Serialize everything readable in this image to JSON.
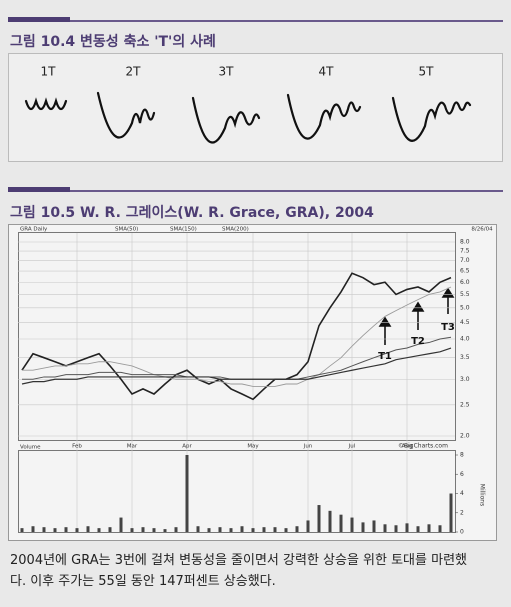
{
  "figure1": {
    "title": "그림 10.4 변동성 축소 'T'의 사례",
    "labels": [
      "1T",
      "2T",
      "3T",
      "4T",
      "5T"
    ]
  },
  "figure2": {
    "title": "그림 10.5 W. R. 그레이스(W. R. Grace, GRA), 2004",
    "chart_data": {
      "type": "line",
      "header": [
        "GRA Daily",
        "SMA(50)",
        "SMA(150)",
        "SMA(200)"
      ],
      "date": "8/26/04",
      "categories": [
        null,
        null,
        null,
        null,
        null,
        "Feb",
        null,
        null,
        null,
        null,
        "Mar",
        null,
        null,
        null,
        null,
        "Apr",
        null,
        null,
        null,
        null,
        null,
        "May",
        null,
        null,
        null,
        null,
        "Jun",
        null,
        null,
        null,
        "Jul",
        null,
        null,
        null,
        null,
        "Aug",
        null,
        null,
        null,
        null
      ],
      "log_scale": true,
      "ylim": [
        2,
        8
      ],
      "yticks": [
        {
          "value": 8,
          "label": "8.0"
        },
        {
          "value": 7.5,
          "label": "7.5"
        },
        {
          "value": 7,
          "label": "7.0"
        },
        {
          "value": 6.5,
          "label": "6.5"
        },
        {
          "value": 6,
          "label": "6.0"
        },
        {
          "value": 5.5,
          "label": "5.5"
        },
        {
          "value": 5,
          "label": "5.0"
        },
        {
          "value": 4.5,
          "label": "4.5"
        },
        {
          "value": 4,
          "label": "4.0"
        },
        {
          "value": 3.5,
          "label": "3.5"
        },
        {
          "value": 3,
          "label": "3.0"
        },
        {
          "value": 2.5,
          "label": "2.5"
        },
        {
          "value": 2,
          "label": "2.0"
        }
      ],
      "series": [
        {
          "name": "GRA Daily",
          "color": "#222222",
          "values": [
            3.2,
            3.6,
            3.5,
            3.4,
            3.3,
            3.4,
            3.5,
            3.6,
            3.3,
            3.0,
            2.7,
            2.8,
            2.7,
            2.9,
            3.1,
            3.2,
            3.0,
            2.9,
            3.0,
            2.8,
            2.7,
            2.6,
            2.8,
            3.0,
            3.0,
            3.1,
            3.4,
            4.4,
            5.0,
            5.6,
            6.4,
            6.2,
            5.9,
            6.0,
            5.5,
            5.7,
            5.8,
            5.6,
            6.0,
            6.2
          ]
        },
        {
          "name": "SMA(50)",
          "color": "#9a9a9a",
          "values": [
            3.2,
            3.2,
            3.25,
            3.3,
            3.3,
            3.35,
            3.35,
            3.4,
            3.4,
            3.35,
            3.3,
            3.2,
            3.1,
            3.05,
            3.0,
            3.0,
            3.0,
            2.95,
            2.95,
            2.9,
            2.9,
            2.85,
            2.85,
            2.85,
            2.9,
            2.9,
            3.0,
            3.1,
            3.3,
            3.5,
            3.8,
            4.1,
            4.4,
            4.7,
            4.9,
            5.1,
            5.3,
            5.5,
            5.6,
            5.8
          ]
        },
        {
          "name": "SMA(150)",
          "color": "#555555",
          "values": [
            3.0,
            3.0,
            3.05,
            3.05,
            3.1,
            3.1,
            3.1,
            3.15,
            3.15,
            3.15,
            3.1,
            3.1,
            3.1,
            3.1,
            3.1,
            3.05,
            3.05,
            3.05,
            3.05,
            3.0,
            3.0,
            3.0,
            3.0,
            3.0,
            3.0,
            3.0,
            3.05,
            3.1,
            3.15,
            3.2,
            3.3,
            3.4,
            3.5,
            3.6,
            3.7,
            3.75,
            3.85,
            3.9,
            4.0,
            4.05
          ]
        },
        {
          "name": "SMA(200)",
          "color": "#333333",
          "values": [
            2.9,
            2.95,
            2.95,
            3.0,
            3.0,
            3.0,
            3.05,
            3.05,
            3.05,
            3.05,
            3.05,
            3.05,
            3.05,
            3.05,
            3.05,
            3.05,
            3.05,
            3.05,
            3.0,
            3.0,
            3.0,
            3.0,
            3.0,
            3.0,
            3.0,
            3.0,
            3.0,
            3.05,
            3.1,
            3.15,
            3.2,
            3.25,
            3.3,
            3.35,
            3.45,
            3.5,
            3.55,
            3.6,
            3.65,
            3.75
          ]
        }
      ],
      "annotations": [
        "T1",
        "T2",
        "T3"
      ],
      "volume": {
        "label": "Volume",
        "source": "©BigCharts.com",
        "unit": "Millions",
        "color": "#444444",
        "ylim": [
          0,
          8
        ],
        "yticks": [
          0,
          2,
          4,
          6,
          8
        ],
        "values": [
          0.4,
          0.6,
          0.5,
          0.4,
          0.5,
          0.4,
          0.6,
          0.4,
          0.5,
          1.5,
          0.4,
          0.5,
          0.4,
          0.3,
          0.5,
          8.0,
          0.6,
          0.4,
          0.5,
          0.4,
          0.6,
          0.4,
          0.5,
          0.5,
          0.4,
          0.6,
          1.2,
          2.8,
          2.2,
          1.8,
          1.5,
          1.0,
          1.2,
          0.8,
          0.7,
          0.9,
          0.6,
          0.8,
          0.7,
          4.0
        ]
      }
    }
  },
  "caption": [
    "2004년에 GRA는 3번에 걸쳐 변동성을 줄이면서 강력한 상승을 위한 토대를 마련했",
    "다. 이후 주가는 55일 동안 147퍼센트 상승했다."
  ]
}
